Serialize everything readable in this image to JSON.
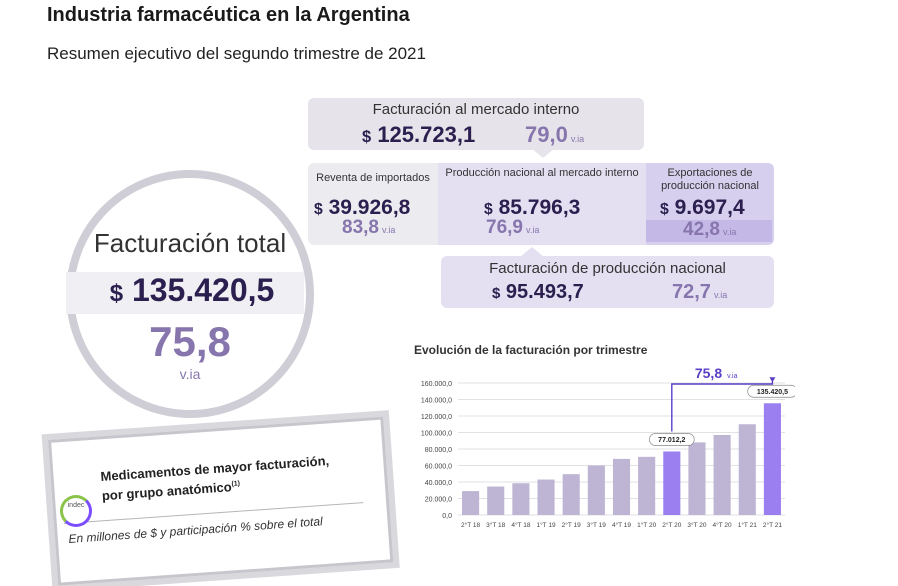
{
  "header": {
    "title": "Industria farmacéutica en la Argentina",
    "subtitle": "Resumen ejecutivo del segundo trimestre de 2021"
  },
  "total": {
    "label": "Facturación total",
    "currency": "$",
    "amount": "135.420,5",
    "variation": "75,8",
    "variation_unit": "v.ia"
  },
  "mercado_interno": {
    "label": "Facturación al mercado interno",
    "currency": "$",
    "amount": "125.723,1",
    "variation": "79,0",
    "variation_unit": "v.ia"
  },
  "reventa": {
    "label": "Reventa de importados",
    "currency": "$",
    "amount": "39.926,8",
    "variation": "83,8",
    "variation_unit": "v.ia"
  },
  "produccion_interno": {
    "label": "Producción nacional al mercado interno",
    "currency": "$",
    "amount": "85.796,3",
    "variation": "76,9",
    "variation_unit": "v.ia"
  },
  "exportaciones": {
    "label": "Exportaciones de producción nacional",
    "currency": "$",
    "amount": "9.697,4",
    "variation": "42,8",
    "variation_unit": "v.ia"
  },
  "produccion_nacional": {
    "label": "Facturación de producción nacional",
    "currency": "$",
    "amount": "95.493,7",
    "variation": "72,7",
    "variation_unit": "v.ia"
  },
  "chart_data": {
    "type": "bar",
    "title": "Evolución de la facturación por trimestre",
    "categories": [
      "2°T 18",
      "3°T 18",
      "4°T 18",
      "1°T 19",
      "2°T 19",
      "3°T 19",
      "4°T 19",
      "1°T 20",
      "2°T 20",
      "3°T 20",
      "4°T 20",
      "1°T 21",
      "2°T 21"
    ],
    "values": [
      29000,
      34500,
      38500,
      43000,
      49500,
      60000,
      68000,
      70500,
      77012.2,
      88000,
      97000,
      110000,
      135420.5
    ],
    "highlight": [
      "2°T 20",
      "2°T 21"
    ],
    "data_labels": {
      "2°T 20": "77.012,2",
      "2°T 21": "135.420,5"
    },
    "ylim": [
      0,
      160000
    ],
    "yticks": [
      "0,0",
      "20.000,0",
      "40.000,0",
      "60.000,0",
      "80.000,0",
      "100.000,0",
      "120.000,0",
      "140.000,0",
      "160.000,0"
    ],
    "ytick_values": [
      0,
      20000,
      40000,
      60000,
      80000,
      100000,
      120000,
      140000,
      160000
    ],
    "annotation": {
      "value": "75,8",
      "unit": "v.ia"
    },
    "colors": {
      "bar": "#bdb5d3",
      "highlight": "#9b7ff0",
      "text": "#2a1f4e",
      "accent": "#5b3fc4"
    },
    "grid": true,
    "xlabel": "",
    "ylabel": ""
  },
  "card": {
    "title_line1": "Medicamentos de mayor facturación,",
    "title_line2": "por grupo anatómico",
    "title_sup": "(1)",
    "logo_text": "indec",
    "subtitle": "En millones de $ y participación % sobre el total"
  }
}
